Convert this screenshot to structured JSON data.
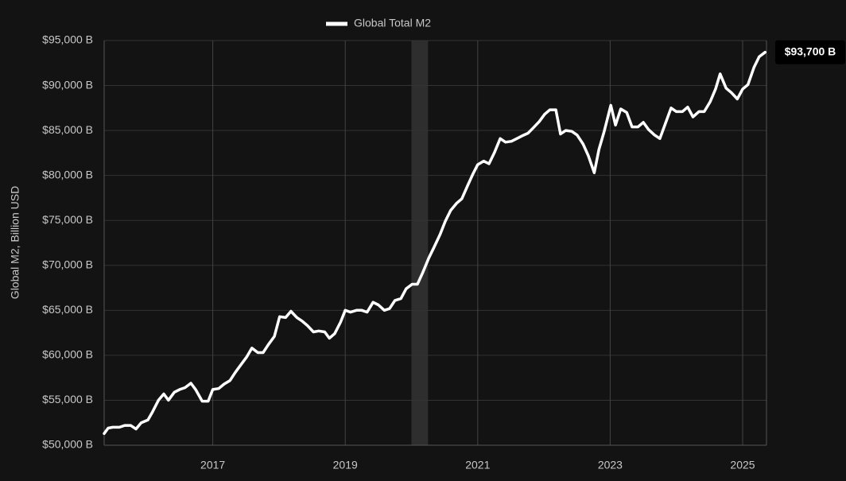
{
  "chart_data": {
    "type": "line",
    "ylabel": "Global M2, Billion USD",
    "xlim": [
      2015.36,
      2025.36
    ],
    "xticks": [
      2017,
      2019,
      2021,
      2023,
      2025
    ],
    "ylim": [
      50000,
      95000
    ],
    "yticks": [
      {
        "value": 50000,
        "label": "$50,000 B"
      },
      {
        "value": 55000,
        "label": "$55,000 B"
      },
      {
        "value": 60000,
        "label": "$60,000 B"
      },
      {
        "value": 65000,
        "label": "$65,000 B"
      },
      {
        "value": 70000,
        "label": "$70,000 B"
      },
      {
        "value": 75000,
        "label": "$75,000 B"
      },
      {
        "value": 80000,
        "label": "$80,000 B"
      },
      {
        "value": 85000,
        "label": "$85,000 B"
      },
      {
        "value": 90000,
        "label": "$90,000 B"
      },
      {
        "value": 95000,
        "label": "$95,000 B"
      }
    ],
    "grid": true,
    "shaded_range": [
      2020.0,
      2020.25
    ],
    "end_label": {
      "value": 93700,
      "label": "$93,700 B"
    },
    "series": [
      {
        "name": "Global Total M2",
        "color": "#ffffff",
        "x": [
          2015.36,
          2015.42,
          2015.49,
          2015.59,
          2015.67,
          2015.76,
          2015.84,
          2015.92,
          2016.02,
          2016.09,
          2016.18,
          2016.26,
          2016.33,
          2016.42,
          2016.5,
          2016.58,
          2016.67,
          2016.74,
          2016.84,
          2016.93,
          2017.0,
          2017.09,
          2017.17,
          2017.26,
          2017.34,
          2017.42,
          2017.51,
          2017.59,
          2017.68,
          2017.76,
          2017.84,
          2017.93,
          2018.01,
          2018.1,
          2018.18,
          2018.27,
          2018.35,
          2018.43,
          2018.52,
          2018.6,
          2018.69,
          2018.76,
          2018.84,
          2018.93,
          2019.0,
          2019.08,
          2019.17,
          2019.25,
          2019.33,
          2019.42,
          2019.5,
          2019.59,
          2019.67,
          2019.75,
          2019.84,
          2019.92,
          2020.01,
          2020.09,
          2020.17,
          2020.26,
          2020.34,
          2020.43,
          2020.51,
          2020.59,
          2020.68,
          2020.76,
          2020.85,
          2020.93,
          2021.0,
          2021.09,
          2021.17,
          2021.25,
          2021.34,
          2021.42,
          2021.51,
          2021.59,
          2021.67,
          2021.76,
          2021.84,
          2021.93,
          2022.01,
          2022.09,
          2022.18,
          2022.25,
          2022.33,
          2022.42,
          2022.5,
          2022.59,
          2022.67,
          2022.76,
          2022.83,
          2022.91,
          2023.01,
          2023.08,
          2023.16,
          2023.25,
          2023.33,
          2023.42,
          2023.5,
          2023.58,
          2023.67,
          2023.75,
          2023.84,
          2023.92,
          2024.0,
          2024.09,
          2024.17,
          2024.25,
          2024.34,
          2024.42,
          2024.51,
          2024.59,
          2024.66,
          2024.75,
          2024.83,
          2024.92,
          2025.0,
          2025.08,
          2025.17,
          2025.25,
          2025.34
        ],
        "values": [
          51300,
          51900,
          52000,
          52000,
          52200,
          52200,
          51800,
          52500,
          52800,
          53700,
          55000,
          55700,
          55000,
          55900,
          56200,
          56400,
          56900,
          56200,
          54900,
          54900,
          56200,
          56300,
          56800,
          57200,
          58100,
          58900,
          59800,
          60800,
          60300,
          60300,
          61200,
          62100,
          64300,
          64200,
          64900,
          64200,
          63800,
          63300,
          62600,
          62700,
          62600,
          61900,
          62400,
          63700,
          65000,
          64800,
          65000,
          65000,
          64800,
          65900,
          65600,
          65000,
          65200,
          66100,
          66300,
          67400,
          67900,
          67900,
          69200,
          70800,
          72000,
          73400,
          74900,
          76100,
          76900,
          77400,
          78900,
          80200,
          81200,
          81600,
          81300,
          82500,
          84100,
          83700,
          83800,
          84100,
          84400,
          84700,
          85300,
          86000,
          86800,
          87300,
          87300,
          84600,
          85000,
          84900,
          84500,
          83500,
          82200,
          80300,
          82900,
          84900,
          87800,
          85600,
          87400,
          87000,
          85400,
          85400,
          85900,
          85100,
          84500,
          84100,
          85900,
          87500,
          87100,
          87100,
          87600,
          86500,
          87100,
          87100,
          88200,
          89600,
          91300,
          89700,
          89200,
          88500,
          89600,
          90100,
          92000,
          93200,
          93700
        ]
      }
    ]
  }
}
